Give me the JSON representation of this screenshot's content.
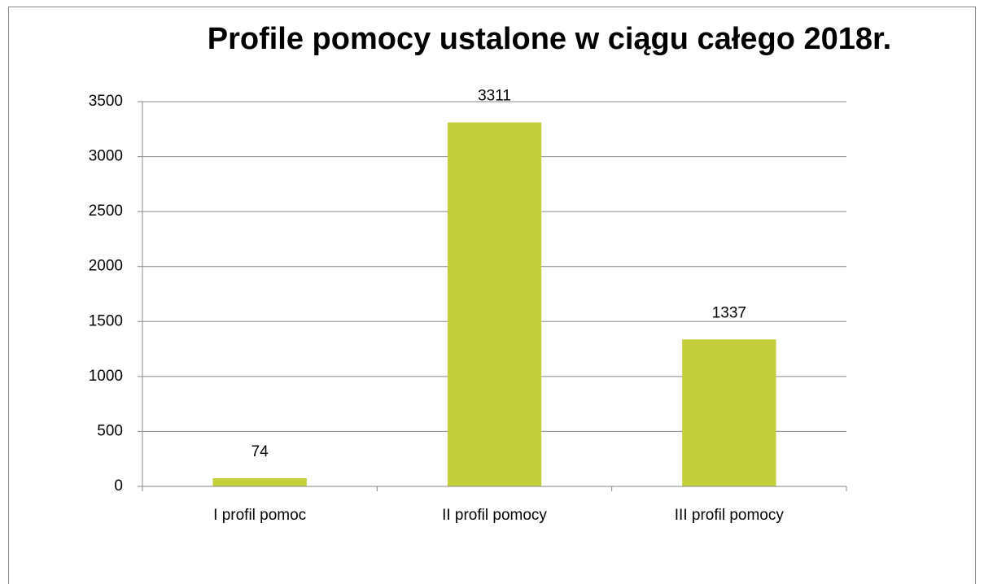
{
  "chart_data": {
    "type": "bar",
    "title": "Profile pomocy ustalone w ciągu całego 2018r.",
    "categories": [
      "I profil pomoc",
      "II profil pomocy",
      "III profil pomocy"
    ],
    "values": [
      74,
      3311,
      1337
    ],
    "color": "#c3d03c",
    "ylim": [
      0,
      3500
    ],
    "yticks": [
      0,
      500,
      1000,
      1500,
      2000,
      2500,
      3000,
      3500
    ],
    "grid": true
  }
}
